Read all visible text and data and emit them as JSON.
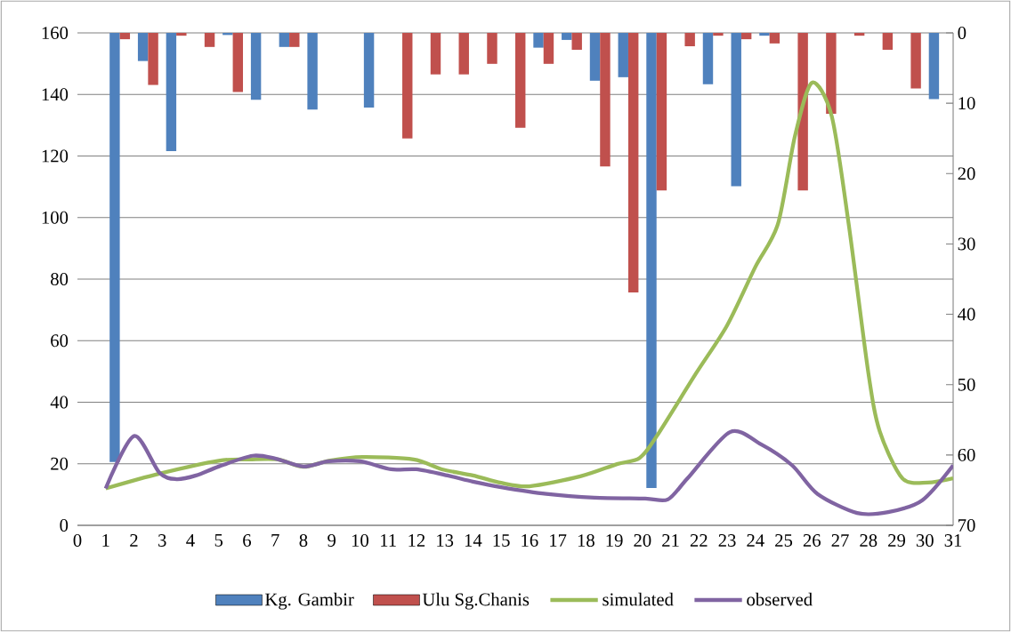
{
  "chart_data": {
    "type": "bar",
    "xlim": [
      0,
      31
    ],
    "xticks": [
      0,
      1,
      2,
      3,
      4,
      5,
      6,
      7,
      8,
      9,
      10,
      11,
      12,
      13,
      14,
      15,
      16,
      17,
      18,
      19,
      20,
      21,
      22,
      23,
      24,
      25,
      26,
      27,
      28,
      29,
      30,
      31
    ],
    "ylim": [
      0,
      160
    ],
    "yticks": [
      0,
      20,
      40,
      60,
      80,
      100,
      120,
      140,
      160
    ],
    "y2lim": [
      70,
      0
    ],
    "y2ticks": [
      0,
      10,
      20,
      30,
      40,
      50,
      60,
      70
    ],
    "grid": "y",
    "legend": "bottom",
    "series": [
      {
        "name": "Kg. Gambir",
        "axis": "y2",
        "color": "#4f81bd",
        "x": [
          1.5,
          2.5,
          3.5,
          4.5,
          5.5,
          6.5,
          7.5,
          8.5,
          9.5,
          10.5,
          11.5,
          12.5,
          13.5,
          14.5,
          15.5,
          16.5,
          17.5,
          18.5,
          19.5,
          20.5,
          21.5,
          22.5,
          23.5,
          24.5,
          25.5,
          26.5,
          27.5,
          28.5,
          29.5,
          30.5
        ],
        "values": [
          61,
          4.0,
          16.8,
          0,
          0.3,
          9.5,
          2.0,
          10.9,
          0,
          10.6,
          0,
          0,
          0,
          0,
          0,
          2.1,
          1.0,
          6.8,
          6.3,
          64.7,
          0,
          7.3,
          21.8,
          0.4,
          0,
          0,
          0,
          0,
          0,
          9.4
        ]
      },
      {
        "name": "Ulu Sg.Chanis",
        "axis": "y2",
        "color": "#c0504d",
        "x": [
          1.5,
          2.5,
          3.5,
          4.5,
          5.5,
          6.5,
          7.5,
          8.5,
          9.5,
          10.5,
          11.5,
          12.5,
          13.5,
          14.5,
          15.5,
          16.5,
          17.5,
          18.5,
          19.5,
          20.5,
          21.5,
          22.5,
          23.5,
          24.5,
          25.5,
          26.5,
          27.5,
          28.5,
          29.5,
          30.5
        ],
        "values": [
          0.9,
          7.4,
          0.4,
          2.0,
          8.4,
          0,
          2.0,
          0,
          0,
          0,
          15.0,
          5.9,
          5.9,
          4.4,
          13.5,
          4.4,
          2.4,
          19.0,
          36.9,
          22.4,
          1.9,
          0.4,
          0.9,
          1.5,
          22.4,
          11.5,
          0.4,
          2.4,
          7.9,
          0
        ]
      },
      {
        "name": "simulated",
        "type": "line",
        "color": "#9bbb59",
        "x": [
          1,
          2.9,
          5,
          6.1,
          7.1,
          8,
          8.9,
          10.1,
          11.9,
          12.9,
          14,
          15,
          16,
          17.8,
          19.1,
          19.9,
          20.5,
          21.9,
          23,
          24,
          24.8,
          25.4,
          26,
          26.7,
          27.3,
          28,
          28.4,
          29.2,
          30.1,
          31
        ],
        "values": [
          12,
          16.8,
          21,
          21.4,
          21.4,
          19,
          21,
          22.2,
          21.4,
          18.2,
          16.2,
          13.8,
          12.7,
          15.9,
          19.9,
          21.9,
          28.9,
          49.4,
          65,
          84,
          98,
          126.5,
          143.8,
          133,
          98,
          49.4,
          30.6,
          15.3,
          13.9,
          15.3
        ]
      },
      {
        "name": "observed",
        "type": "line",
        "color": "#8064a2",
        "x": [
          1,
          2,
          2.9,
          3.5,
          4.2,
          5,
          6.2,
          7,
          8,
          8.9,
          10,
          11.1,
          12,
          13.1,
          14,
          15,
          16.6,
          18.3,
          20.1,
          20.9,
          21.6,
          23.1,
          24.2,
          25.3,
          26.2,
          27.6,
          28.7,
          29.9,
          31
        ],
        "values": [
          12,
          29,
          17.1,
          15,
          16.2,
          19.1,
          22.6,
          21.7,
          19.1,
          20.8,
          20.8,
          18.2,
          18.2,
          16.2,
          14.2,
          12.4,
          10.2,
          9,
          8.7,
          8.4,
          15.3,
          30.3,
          26.3,
          19.5,
          10.2,
          4,
          4.3,
          8.1,
          19.5
        ]
      }
    ]
  }
}
